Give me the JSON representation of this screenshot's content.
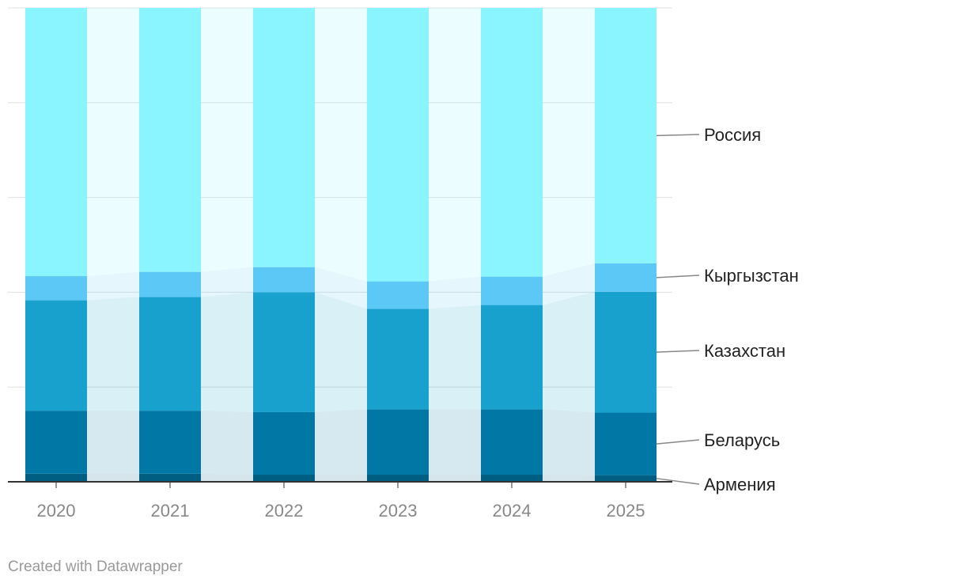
{
  "chart_data": {
    "type": "bar",
    "stacked": true,
    "normalized": true,
    "categories": [
      "2020",
      "2021",
      "2022",
      "2023",
      "2024",
      "2025"
    ],
    "ylim": [
      0,
      100
    ],
    "grid": true,
    "legend": "right",
    "series": [
      {
        "name": "Армения",
        "color": "#005e82",
        "values": [
          1.7,
          1.7,
          1.5,
          1.5,
          1.5,
          1.4
        ]
      },
      {
        "name": "Беларусь",
        "color": "#0077a5",
        "values": [
          13.3,
          13.3,
          13.2,
          13.8,
          13.8,
          13.2
        ]
      },
      {
        "name": "Казахстан",
        "color": "#19a1ce",
        "values": [
          23.3,
          24.0,
          25.3,
          21.2,
          22.0,
          25.5
        ]
      },
      {
        "name": "Кыргызстан",
        "color": "#5bc8f5",
        "values": [
          5.1,
          5.3,
          5.3,
          5.8,
          6.0,
          6.0
        ]
      },
      {
        "name": "Россия",
        "color": "#8af5ff",
        "values": [
          56.6,
          55.7,
          54.7,
          57.7,
          56.7,
          53.9
        ]
      }
    ]
  },
  "credit": "Created with Datawrapper"
}
